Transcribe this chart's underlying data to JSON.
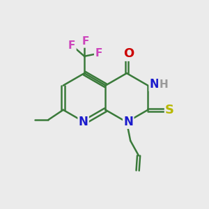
{
  "bg_color": "#ebebeb",
  "bond_color": "#3a7a3a",
  "bond_width": 1.8,
  "atom_colors": {
    "N": "#1a1acc",
    "O": "#cc0000",
    "S": "#b8b800",
    "F": "#cc44bb",
    "H": "#999999",
    "C": "#3a7a3a"
  },
  "font_size": 11,
  "fig_size": [
    3.0,
    3.0
  ],
  "dpi": 100
}
